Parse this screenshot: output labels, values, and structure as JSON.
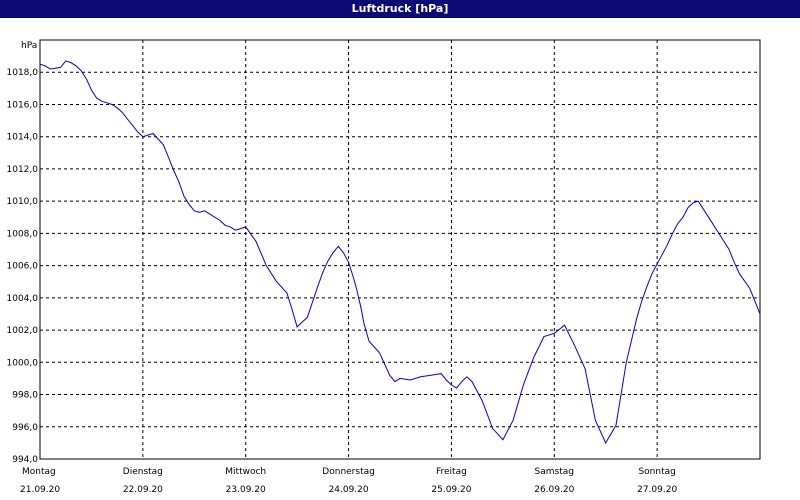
{
  "title": "Luftdruck [hPa]",
  "chart_data": {
    "type": "line",
    "title": "Luftdruck [hPa]",
    "ylabel": "hPa",
    "xlabel": "",
    "ylim": [
      994.0,
      1020.0
    ],
    "yticks": [
      "994,0",
      "996,0",
      "998,0",
      "1000,0",
      "1002,0",
      "1004,0",
      "1006,0",
      "1008,0",
      "1010,0",
      "1012,0",
      "1014,0",
      "1016,0",
      "1018,0"
    ],
    "ytick_values": [
      994,
      996,
      998,
      1000,
      1002,
      1004,
      1006,
      1008,
      1010,
      1012,
      1014,
      1016,
      1018
    ],
    "xlim": [
      0,
      7
    ],
    "x_categories": [
      {
        "day": "Montag",
        "date": "21.09.20"
      },
      {
        "day": "Dienstag",
        "date": "22.09.20"
      },
      {
        "day": "Mittwoch",
        "date": "23.09.20"
      },
      {
        "day": "Donnerstag",
        "date": "24.09.20"
      },
      {
        "day": "Freitag",
        "date": "25.09.20"
      },
      {
        "day": "Samstag",
        "date": "26.09.20"
      },
      {
        "day": "Sonntag",
        "date": "27.09.20"
      }
    ],
    "grid": true,
    "line_color": "#0000cc",
    "series": [
      {
        "x": [
          0.0,
          0.05,
          0.1,
          0.2,
          0.25,
          0.3,
          0.35,
          0.4,
          0.45,
          0.5,
          0.55,
          0.6,
          0.65,
          0.7,
          0.75,
          0.8,
          0.85,
          0.9,
          0.95,
          1.0,
          1.1,
          1.2,
          1.25,
          1.3,
          1.35,
          1.4,
          1.45,
          1.5,
          1.55,
          1.6,
          1.7,
          1.75,
          1.8,
          1.85,
          1.9,
          1.95,
          2.0,
          2.1,
          2.2,
          2.3,
          2.4,
          2.45,
          2.5,
          2.6,
          2.7,
          2.75,
          2.8,
          2.85,
          2.9,
          2.95,
          3.0,
          3.05,
          3.08,
          3.12,
          3.15,
          3.2,
          3.3,
          3.4,
          3.45,
          3.5,
          3.6,
          3.7,
          3.8,
          3.9,
          3.95,
          4.0,
          4.05,
          4.1,
          4.15,
          4.2,
          4.3,
          4.4,
          4.5,
          4.6,
          4.7,
          4.8,
          4.9,
          5.0,
          5.1,
          5.2,
          5.3,
          5.4,
          5.5,
          5.6,
          5.7,
          5.8,
          5.85,
          5.9,
          5.95,
          6.0,
          6.05,
          6.1,
          6.15,
          6.2,
          6.25,
          6.3,
          6.35,
          6.4,
          6.5,
          6.6,
          6.7,
          6.75,
          6.8,
          6.9,
          6.95,
          7.0
        ],
        "y": [
          1018.5,
          1018.4,
          1018.2,
          1018.3,
          1018.7,
          1018.6,
          1018.4,
          1018.1,
          1017.6,
          1016.9,
          1016.4,
          1016.2,
          1016.1,
          1016.0,
          1015.8,
          1015.5,
          1015.1,
          1014.7,
          1014.3,
          1014.0,
          1014.2,
          1013.5,
          1012.7,
          1011.9,
          1011.2,
          1010.3,
          1009.8,
          1009.4,
          1009.3,
          1009.4,
          1009.0,
          1008.8,
          1008.5,
          1008.4,
          1008.2,
          1008.3,
          1008.4,
          1007.5,
          1006.0,
          1005.0,
          1004.3,
          1003.3,
          1002.2,
          1002.8,
          1004.7,
          1005.6,
          1006.3,
          1006.8,
          1007.2,
          1006.8,
          1006.2,
          1005.2,
          1004.5,
          1003.4,
          1002.4,
          1001.3,
          1000.6,
          999.2,
          998.8,
          999.0,
          998.9,
          999.1,
          999.2,
          999.3,
          998.9,
          998.6,
          998.4,
          998.8,
          999.1,
          998.8,
          997.6,
          995.9,
          995.2,
          996.4,
          998.6,
          1000.3,
          1001.6,
          1001.8,
          1002.3,
          1001.0,
          999.6,
          996.4,
          995.0,
          996.1,
          1000.0,
          1002.7,
          1003.8,
          1004.7,
          1005.5,
          1006.1,
          1006.7,
          1007.3,
          1008.0,
          1008.6,
          1009.0,
          1009.6,
          1009.9,
          1010.0,
          1009.0,
          1008.0,
          1007.0,
          1006.2,
          1005.5,
          1004.6,
          1003.8,
          1003.0
        ]
      }
    ]
  }
}
